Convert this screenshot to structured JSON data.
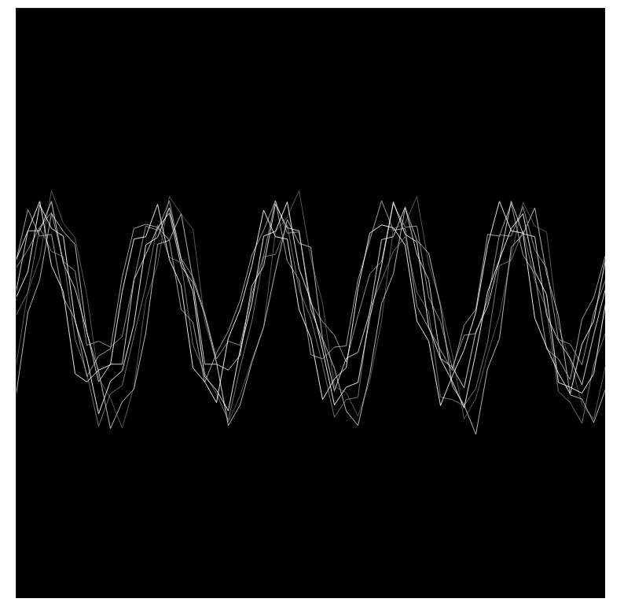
{
  "chart_data": {
    "type": "line",
    "tick_labels": false,
    "grid": false,
    "xlim": [
      0,
      10
    ],
    "ylim": [
      0,
      10
    ],
    "x": [
      0,
      0.2,
      0.4,
      0.6,
      0.8,
      1,
      1.2,
      1.4,
      1.6,
      1.8,
      2,
      2.2,
      2.4,
      2.6,
      2.8,
      3,
      3.2,
      3.4,
      3.6,
      3.8,
      4,
      4.2,
      4.4,
      4.6,
      4.8,
      5,
      5.2,
      5.4,
      5.6,
      5.8,
      6,
      6.2,
      6.4,
      6.6,
      6.8,
      7,
      7.2,
      7.4,
      7.6,
      7.8,
      8,
      8.2,
      8.4,
      8.6,
      8.8,
      9,
      9.2,
      9.4,
      9.6,
      9.8,
      10
    ],
    "series": [
      {
        "color": "#606060",
        "values": [
          3.94,
          5.2,
          5.76,
          6.91,
          6.36,
          6.11,
          5.15,
          3.74,
          3.39,
          2.89,
          3.59,
          5.05,
          5.66,
          6.81,
          6.51,
          6.26,
          4.7,
          3.99,
          2.99,
          3.44,
          4.04,
          4.6,
          6.21,
          6.46,
          6.91,
          5.76,
          5.0,
          3.59,
          3.49,
          3.09,
          3.69,
          4.7,
          6.26,
          6.36,
          6.81,
          5.66,
          5.0,
          4.14,
          3.04,
          3.39,
          4.14,
          4.8,
          5.81,
          6.71,
          6.31,
          6.21,
          4.6,
          4.04,
          3.29,
          3.04,
          3.94
        ]
      },
      {
        "color": "#808080",
        "values": [
          4.8,
          5.19,
          6.28,
          5.88,
          5.79,
          4.4,
          3.81,
          2.92,
          3.47,
          3.61,
          4.45,
          5.29,
          6.33,
          5.78,
          5.69,
          4.3,
          3.81,
          3.47,
          3.02,
          3.91,
          4.7,
          5.79,
          5.83,
          6.33,
          5.24,
          4.75,
          3.96,
          3.07,
          3.37,
          3.41,
          4.9,
          5.39,
          5.88,
          6.13,
          5.19,
          4.85,
          3.41,
          3.37,
          3.27,
          3.56,
          4.35,
          5.64,
          5.73,
          6.23,
          5.39,
          4.9,
          3.51,
          3.32,
          2.97,
          3.96,
          4.5
        ]
      },
      {
        "color": "#a0a0a0",
        "values": [
          5.6,
          5.91,
          6.29,
          6.54,
          5.71,
          5.55,
          4.29,
          4.36,
          4.26,
          4.44,
          5.4,
          6.31,
          6.24,
          6.74,
          5.76,
          5.45,
          4.84,
          4.06,
          4.36,
          4.29,
          5.15,
          5.81,
          6.74,
          6.19,
          6.21,
          5.0,
          4.69,
          4.46,
          4.01,
          4.79,
          5.5,
          5.71,
          6.69,
          6.29,
          6.31,
          5.1,
          4.69,
          3.91,
          4.46,
          4.49,
          5.05,
          6.16,
          6.14,
          6.64,
          5.91,
          5.6,
          4.39,
          4.31,
          3.96,
          4.84,
          5.4
        ]
      },
      {
        "color": "#b0b0b0",
        "values": [
          5.72,
          6.59,
          6.14,
          6.17,
          5.1,
          4.73,
          3.76,
          4.11,
          4.23,
          5.45,
          6.27,
          6.34,
          6.29,
          6.07,
          4.9,
          4.68,
          3.66,
          4.16,
          4.53,
          5.05,
          5.82,
          6.24,
          6.74,
          5.72,
          5.4,
          4.13,
          4.06,
          4.26,
          4.28,
          5.4,
          6.07,
          6.74,
          6.24,
          6.27,
          4.95,
          4.58,
          4.21,
          3.86,
          4.63,
          4.9,
          6.17,
          6.14,
          6.69,
          5.82,
          5.5,
          4.23,
          4.06,
          3.71,
          4.73,
          5.1,
          5.82
        ]
      },
      {
        "color": "#c8c8c8",
        "values": [
          3.45,
          4.85,
          5.4,
          6.52,
          6.22,
          6.0,
          4.5,
          3.85,
          2.88,
          3.33,
          3.55,
          4.5,
          6.0,
          6.07,
          6.52,
          5.4,
          4.8,
          4.0,
          2.93,
          3.28,
          4.0,
          4.6,
          5.55,
          6.42,
          6.02,
          5.95,
          4.4,
          3.9,
          3.18,
          2.93,
          3.8,
          5.0,
          5.5,
          6.62,
          6.07,
          5.85,
          4.95,
          3.6,
          3.28,
          2.78,
          3.9,
          4.4,
          5.95,
          6.17,
          6.62,
          5.5,
          4.8,
          3.45,
          3.38,
          2.98,
          3.55
        ]
      },
      {
        "color": "#e0e0e0",
        "values": [
          5.2,
          6.23,
          6.23,
          6.73,
          5.68,
          5.25,
          4.52,
          3.67,
          3.97,
          3.97,
          5.4,
          5.83,
          6.28,
          6.53,
          5.63,
          5.35,
          3.97,
          3.97,
          3.87,
          4.12,
          5.3,
          5.63,
          6.68,
          6.28,
          6.23,
          4.9,
          4.37,
          3.52,
          4.07,
          4.17,
          4.85,
          6.08,
          6.13,
          6.63,
          5.83,
          5.4,
          4.07,
          3.92,
          3.57,
          4.52,
          4.95,
          5.73,
          6.73,
          6.18,
          6.13,
          4.8,
          4.37,
          4.07,
          3.62,
          4.47,
          5.25
        ]
      },
      {
        "color": "#ffffff",
        "values": [
          5.74,
          6.23,
          6.73,
          5.64,
          5.2,
          3.81,
          3.67,
          3.87,
          3.96,
          5.2,
          6.09,
          6.13,
          6.68,
          5.74,
          5.3,
          3.91,
          3.67,
          3.32,
          4.41,
          4.9,
          5.64,
          6.58,
          6.13,
          6.09,
          4.9,
          4.41,
          3.37,
          3.72,
          3.91,
          5.25,
          6.19,
          6.33,
          6.28,
          5.99,
          4.7,
          4.36,
          3.27,
          3.77,
          4.21,
          4.85,
          5.99,
          6.73,
          6.23,
          6.19,
          4.75,
          4.26,
          3.82,
          3.47,
          4.31,
          4.7,
          5.74
        ]
      },
      {
        "color": "#ffffff",
        "values": [
          5.1,
          5.54,
          6.67,
          6.27,
          6.14,
          4.7,
          4.06,
          3.13,
          3.68,
          3.86,
          4.65,
          5.99,
          6.12,
          6.62,
          5.74,
          5.2,
          3.76,
          3.53,
          3.18,
          4.21,
          5.0,
          6.14,
          6.22,
          6.72,
          5.59,
          5.05,
          4.21,
          3.28,
          3.58,
          3.66,
          4.75,
          5.64,
          6.72,
          6.17,
          6.04,
          4.6,
          4.06,
          3.68,
          3.23,
          4.16,
          5.2,
          5.74,
          6.27,
          6.52,
          5.54,
          5.15,
          3.66,
          3.58,
          3.48,
          3.81,
          5.0
        ]
      }
    ]
  }
}
